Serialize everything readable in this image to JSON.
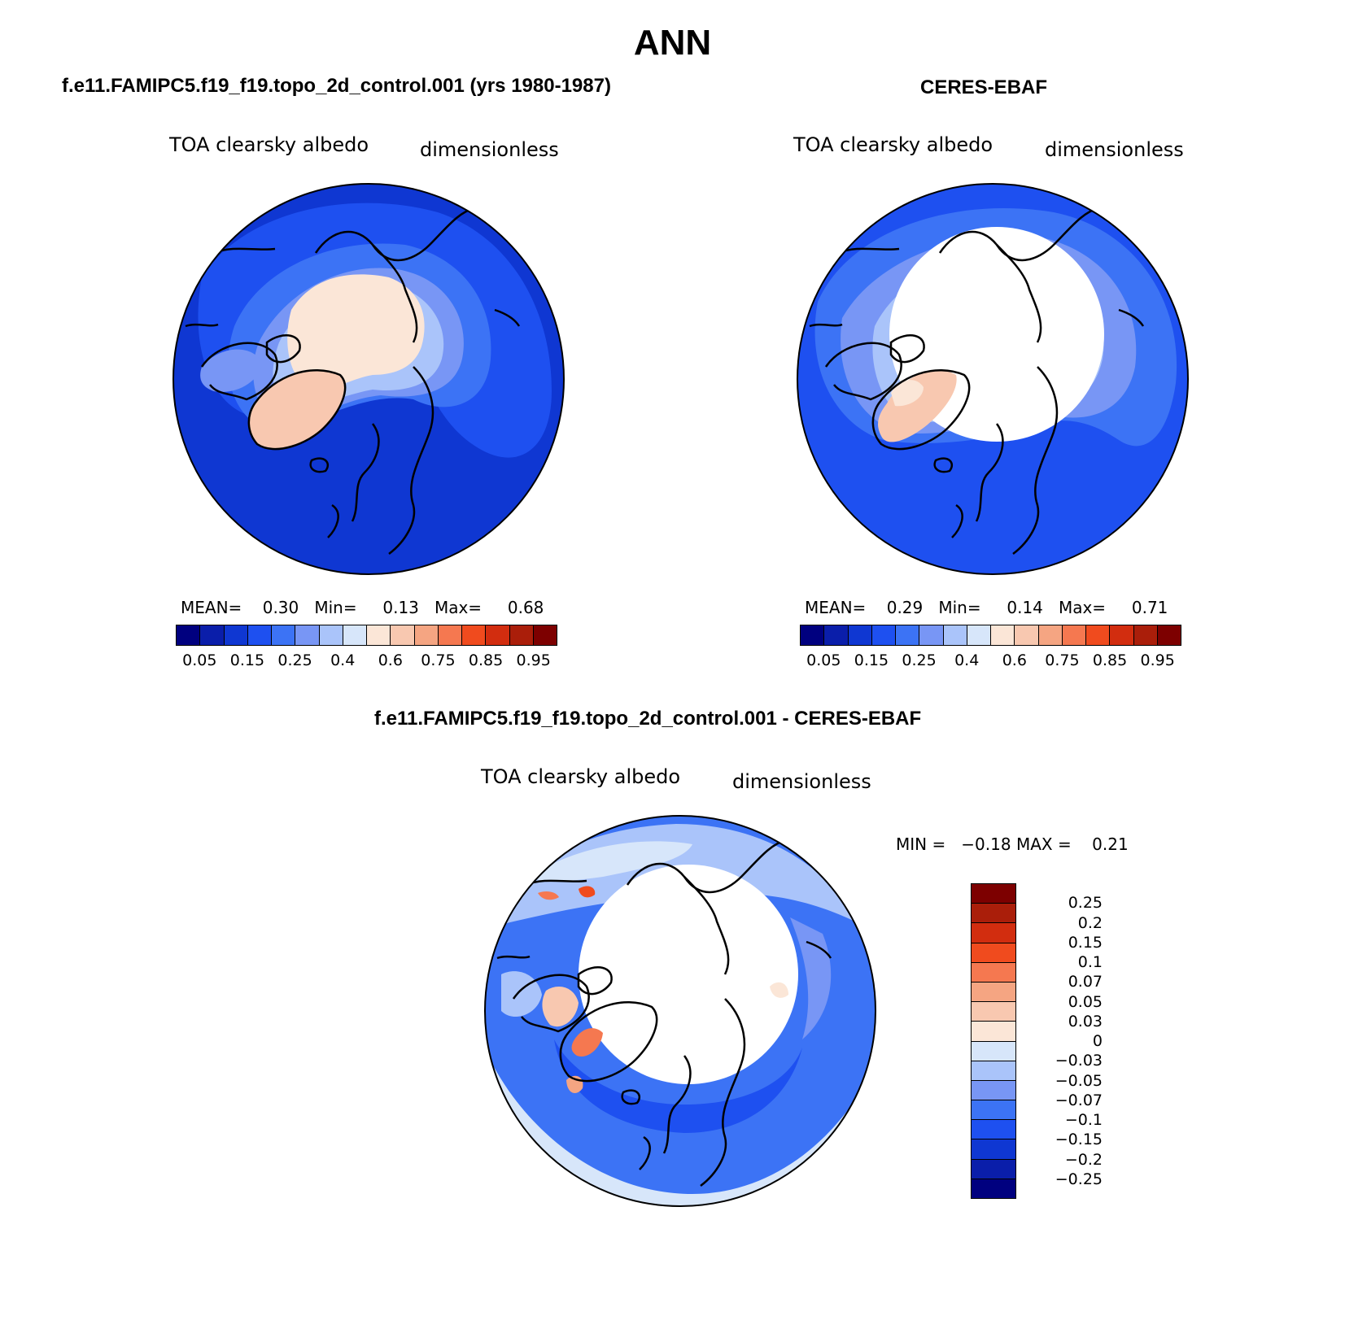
{
  "title": "ANN",
  "panels": [
    {
      "title": "f.e11.FAMIPC5.f19_f19.topo_2d_control.001 (yrs 1980-1987)",
      "variable": "TOA clearsky albedo",
      "units": "dimensionless",
      "stats": "MEAN=    0.30   Min=     0.13   Max=     0.68",
      "colorbar_labels": [
        "0.05",
        "0.15",
        "0.25",
        "0.4",
        "0.6",
        "0.75",
        "0.85",
        "0.95"
      ]
    },
    {
      "title": "CERES-EBAF",
      "variable": "TOA clearsky albedo",
      "units": "dimensionless",
      "stats": "MEAN=    0.29   Min=     0.14   Max=     0.71",
      "colorbar_labels": [
        "0.05",
        "0.15",
        "0.25",
        "0.4",
        "0.6",
        "0.75",
        "0.85",
        "0.95"
      ]
    },
    {
      "title": "f.e11.FAMIPC5.f19_f19.topo_2d_control.001 - CERES-EBAF",
      "variable": "TOA clearsky albedo",
      "units": "dimensionless",
      "stats": "MIN =   −0.18 MAX =    0.21",
      "colorbar_labels": [
        "−0.25",
        "−0.2",
        "−0.15",
        "−0.1",
        "−0.07",
        "−0.05",
        "−0.03",
        "0",
        "0.03",
        "0.05",
        "0.07",
        "0.1",
        "0.15",
        "0.2",
        "0.25"
      ]
    }
  ],
  "colors": {
    "abs_scale": [
      "#00007f",
      "#0a1eaa",
      "#0f37d2",
      "#1e50f0",
      "#3c73f5",
      "#7896f5",
      "#aac4fa",
      "#d7e6fa",
      "#fbe6d7",
      "#f8c8b0",
      "#f5a582",
      "#f57850",
      "#f04b1e",
      "#d22d0f",
      "#aa1e0a",
      "#7d0000"
    ],
    "diff_scale": [
      "#00007f",
      "#0a1eaa",
      "#0f37d2",
      "#1e50f0",
      "#3c73f5",
      "#7896f5",
      "#aac4fa",
      "#d7e6fa",
      "#fbe6d7",
      "#f8c8b0",
      "#f5a582",
      "#f57850",
      "#f04b1e",
      "#d22d0f",
      "#aa1e0a",
      "#7d0000"
    ],
    "coastline": "#000000",
    "missing": "#ffffff"
  },
  "chart_data": [
    {
      "type": "heatmap",
      "projection": "north polar stereographic",
      "title": "f.e11.FAMIPC5.f19_f19.topo_2d_control.001 (yrs 1980-1987)",
      "variable": "TOA clearsky albedo",
      "units": "dimensionless",
      "mean": 0.3,
      "min": 0.13,
      "max": 0.68,
      "contour_levels": [
        0.05,
        0.1,
        0.15,
        0.2,
        0.25,
        0.3,
        0.4,
        0.5,
        0.6,
        0.7,
        0.75,
        0.8,
        0.85,
        0.9,
        0.95
      ]
    },
    {
      "type": "heatmap",
      "projection": "north polar stereographic",
      "title": "CERES-EBAF",
      "variable": "TOA clearsky albedo",
      "units": "dimensionless",
      "mean": 0.29,
      "min": 0.14,
      "max": 0.71,
      "contour_levels": [
        0.05,
        0.1,
        0.15,
        0.2,
        0.25,
        0.3,
        0.4,
        0.5,
        0.6,
        0.7,
        0.75,
        0.8,
        0.85,
        0.9,
        0.95
      ]
    },
    {
      "type": "heatmap",
      "projection": "north polar stereographic",
      "title": "f.e11.FAMIPC5.f19_f19.topo_2d_control.001 - CERES-EBAF",
      "variable": "TOA clearsky albedo",
      "units": "dimensionless",
      "min": -0.18,
      "max": 0.21,
      "contour_levels": [
        -0.25,
        -0.2,
        -0.15,
        -0.1,
        -0.07,
        -0.05,
        -0.03,
        0,
        0.03,
        0.05,
        0.07,
        0.1,
        0.15,
        0.2,
        0.25
      ]
    }
  ]
}
